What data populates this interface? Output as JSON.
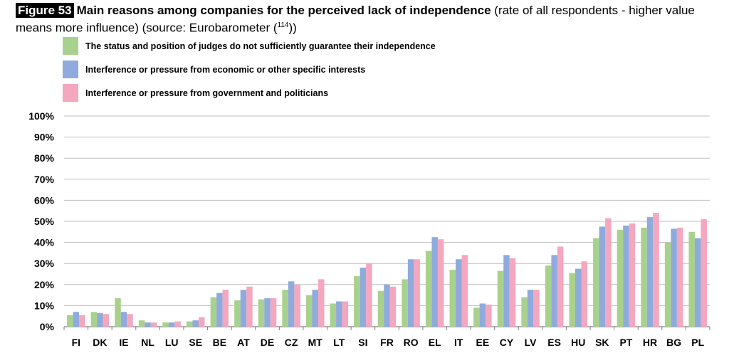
{
  "title": {
    "figure_label": "Figure 53",
    "main": "Main reasons among companies for the perceived lack of independence",
    "rest": "(rate of all respondents - higher value means more influence) (source: Eurobarometer (",
    "footnote": "114",
    "close": "))"
  },
  "colors": {
    "status_series": "#a9d18e",
    "economic_series": "#8faadc",
    "government_series": "#f4a7bf",
    "grid": "#bfbfbf",
    "axis": "#7f7f7f"
  },
  "chart_data": {
    "type": "bar",
    "categories": [
      "FI",
      "DK",
      "IE",
      "NL",
      "LU",
      "SE",
      "BE",
      "AT",
      "DE",
      "CZ",
      "MT",
      "LT",
      "SI",
      "FR",
      "RO",
      "EL",
      "IT",
      "EE",
      "CY",
      "LV",
      "ES",
      "HU",
      "SK",
      "PT",
      "HR",
      "BG",
      "PL"
    ],
    "series": [
      {
        "name": "The status and position of judges do not sufficiently guarantee their independence",
        "values": [
          5.5,
          7,
          13.5,
          3,
          2,
          2.5,
          14,
          12.5,
          13,
          17.5,
          15,
          11,
          24,
          17,
          22.5,
          36,
          27,
          9,
          26.5,
          14,
          29,
          25.5,
          42,
          46,
          47,
          40,
          45
        ]
      },
      {
        "name": "Interference or pressure from economic or other specific interests",
        "values": [
          7,
          6.5,
          7,
          2,
          2,
          3,
          16,
          17.5,
          13.5,
          21.5,
          17.5,
          12,
          28,
          20,
          32,
          42.5,
          32,
          11,
          34,
          17.5,
          34,
          27.5,
          47.5,
          48,
          52,
          46.5,
          42
        ]
      },
      {
        "name": "Interference or pressure from government and politicians",
        "values": [
          5.5,
          6,
          6,
          2,
          2.5,
          4.5,
          17.5,
          19,
          13.5,
          20,
          22.5,
          12,
          30,
          19,
          32,
          41.5,
          34,
          10.5,
          32.5,
          17.5,
          38,
          31,
          51.5,
          49,
          54,
          47,
          51
        ]
      }
    ],
    "yticks": [
      "0%",
      "10%",
      "20%",
      "30%",
      "40%",
      "50%",
      "60%",
      "70%",
      "80%",
      "90%",
      "100%"
    ],
    "ylim": [
      0,
      100
    ],
    "grid": true,
    "legend_position": "top-left"
  }
}
